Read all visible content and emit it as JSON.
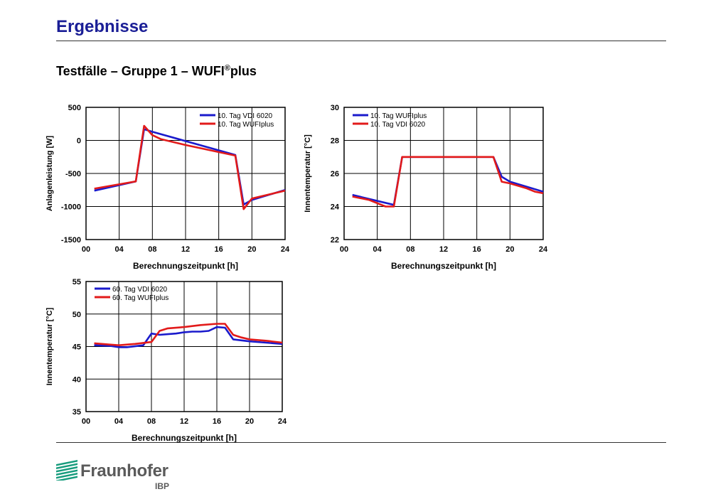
{
  "header": {
    "title": "Ergebnisse",
    "subtitle_main": "Testfälle – Gruppe 1 – WUFI",
    "subtitle_reg": "®",
    "subtitle_end": "plus"
  },
  "logo": {
    "name": "Fraunhofer",
    "sub": "IBP",
    "color": "#179c7d"
  },
  "chart_data": [
    {
      "type": "line",
      "xlabel": "Berechnungszeitpunkt [h]",
      "ylabel": "Anlagenleistung [W]",
      "xlim": [
        0,
        24
      ],
      "ylim": [
        -1500,
        500
      ],
      "xticks": [
        0,
        4,
        8,
        12,
        16,
        20,
        24
      ],
      "xtick_labels": [
        "00",
        "04",
        "08",
        "12",
        "16",
        "20",
        "24"
      ],
      "yticks": [
        -1500,
        -1000,
        -500,
        0,
        500
      ],
      "ytick_labels": [
        "-1500",
        "-1000",
        "-500",
        "0",
        "500"
      ],
      "grid": true,
      "legend": "top-right",
      "series": [
        {
          "name": "10. Tag VDI 6020",
          "color": "#1a1acc",
          "x": [
            1,
            6,
            7,
            8,
            18,
            19,
            20,
            24
          ],
          "y": [
            -760,
            -620,
            170,
            130,
            -220,
            -970,
            -900,
            -750
          ]
        },
        {
          "name": "10. Tag WUFIplus",
          "color": "#e21a1a",
          "x": [
            1,
            6,
            7,
            8,
            9,
            12,
            18,
            19,
            20,
            24
          ],
          "y": [
            -730,
            -620,
            220,
            80,
            20,
            -70,
            -230,
            -1040,
            -880,
            -760
          ]
        }
      ]
    },
    {
      "type": "line",
      "xlabel": "Berechnungszeitpunkt [h]",
      "ylabel": "Innentemperatur [°C]",
      "xlim": [
        0,
        24
      ],
      "ylim": [
        22,
        30
      ],
      "xticks": [
        0,
        4,
        8,
        12,
        16,
        20,
        24
      ],
      "xtick_labels": [
        "00",
        "04",
        "08",
        "12",
        "16",
        "20",
        "24"
      ],
      "yticks": [
        22,
        24,
        26,
        28,
        30
      ],
      "ytick_labels": [
        "22",
        "24",
        "26",
        "28",
        "30"
      ],
      "grid": true,
      "legend": "top-left",
      "series": [
        {
          "name": "10. Tag WUFIplus",
          "color": "#1a1acc",
          "x": [
            1,
            6,
            7,
            18,
            19,
            20,
            22,
            24
          ],
          "y": [
            24.7,
            24.1,
            27.0,
            27.0,
            25.8,
            25.5,
            25.2,
            24.9
          ]
        },
        {
          "name": "10. Tag VDI 6020",
          "color": "#e21a1a",
          "x": [
            1,
            3,
            5,
            6,
            7,
            18,
            19,
            20,
            22,
            23,
            24
          ],
          "y": [
            24.6,
            24.4,
            24.0,
            24.0,
            27.0,
            27.0,
            25.5,
            25.4,
            25.1,
            24.9,
            24.8
          ]
        }
      ]
    },
    {
      "type": "line",
      "xlabel": "Berechnungszeitpunkt [h]",
      "ylabel": "Innentemperatur [°C]",
      "xlim": [
        0,
        24
      ],
      "ylim": [
        35,
        55
      ],
      "xticks": [
        0,
        4,
        8,
        12,
        16,
        20,
        24
      ],
      "xtick_labels": [
        "00",
        "04",
        "08",
        "12",
        "16",
        "20",
        "24"
      ],
      "yticks": [
        35,
        40,
        45,
        50,
        55
      ],
      "ytick_labels": [
        "35",
        "40",
        "45",
        "50",
        "55"
      ],
      "grid": true,
      "legend": "top-left",
      "series": [
        {
          "name": "60. Tag VDI 6020",
          "color": "#1a1acc",
          "x": [
            1,
            3,
            4,
            5,
            7,
            8,
            9,
            10,
            11,
            12,
            13,
            14,
            15,
            16,
            17,
            18,
            20,
            22,
            24
          ],
          "y": [
            45.2,
            45.1,
            44.9,
            44.9,
            45.2,
            47.0,
            46.8,
            46.9,
            47.0,
            47.2,
            47.3,
            47.3,
            47.4,
            48.0,
            47.9,
            46.1,
            45.8,
            45.6,
            45.4
          ]
        },
        {
          "name": "60. Tag WUFIplus",
          "color": "#e21a1a",
          "x": [
            1,
            3,
            4,
            6,
            8,
            9,
            10,
            12,
            14,
            16,
            17,
            18,
            19,
            20,
            22,
            24
          ],
          "y": [
            45.5,
            45.3,
            45.2,
            45.4,
            45.7,
            47.4,
            47.8,
            48.0,
            48.3,
            48.5,
            48.5,
            46.8,
            46.4,
            46.1,
            45.9,
            45.6
          ]
        }
      ]
    }
  ]
}
